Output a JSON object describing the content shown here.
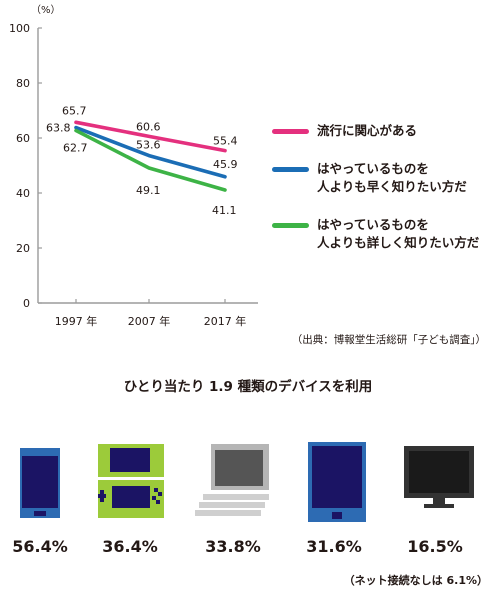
{
  "chart_data": {
    "type": "line",
    "ylabel": "（%）",
    "ylim": [
      0,
      100
    ],
    "yticks": [
      0,
      20,
      40,
      60,
      80,
      100
    ],
    "categories": [
      "1997 年",
      "2007 年",
      "2017 年"
    ],
    "series": [
      {
        "name": "流行に関心がある",
        "color": "#e4307e",
        "values": [
          65.7,
          60.6,
          55.4
        ]
      },
      {
        "name": "はやっているものを人よりも早く知りたい方だ",
        "color": "#1b6db5",
        "values": [
          63.8,
          53.6,
          45.9
        ]
      },
      {
        "name": "はやっているものを人よりも詳しく知りたい方だ",
        "color": "#3db346",
        "values": [
          62.7,
          49.1,
          41.1
        ]
      }
    ],
    "data_labels": [
      [
        "65.7",
        "60.6",
        "55.4"
      ],
      [
        "63.8",
        "53.6",
        "45.9"
      ],
      [
        "62.7",
        "49.1",
        "41.1"
      ]
    ],
    "grid": false,
    "legend_position": "right"
  },
  "legend": [
    {
      "line1": "流行に関心がある",
      "line2": ""
    },
    {
      "line1": "はやっているものを",
      "line2": "人よりも早く知りたい方だ"
    },
    {
      "line1": "はやっているものを",
      "line2": "人よりも詳しく知りたい方だ"
    }
  ],
  "source": "（出典：博報堂生活総研「子ども調査」）",
  "subtitle": "ひとり当たり 1.9 種類のデバイスを利用",
  "devices": [
    {
      "icon": "smartphone-icon",
      "share": 56.4,
      "label": "56.4%"
    },
    {
      "icon": "handheld-game-console-icon",
      "share": 36.4,
      "label": "36.4%"
    },
    {
      "icon": "laptop-pc-icon",
      "share": 33.8,
      "label": "33.8%"
    },
    {
      "icon": "tablet-icon",
      "share": 31.6,
      "label": "31.6%"
    },
    {
      "icon": "tv-monitor-icon",
      "share": 16.5,
      "label": "16.5%"
    }
  ],
  "note": "（ネット接続なしは 6.1%）",
  "colors": {
    "text": "#231815",
    "axis": "#9b9b9b",
    "device_blue": "#2d6bb3",
    "device_navy": "#1b1464",
    "device_green": "#9ccb3a",
    "device_gray": "#b5b5b5",
    "device_dark": "#333333"
  }
}
